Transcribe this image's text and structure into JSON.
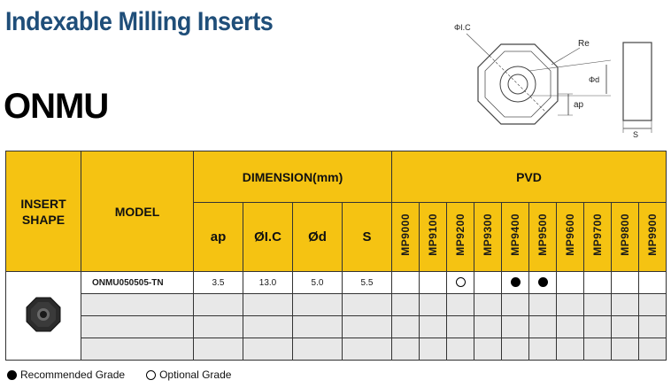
{
  "header": {
    "title": "Indexable Milling Inserts",
    "code": "ONMU"
  },
  "diagram": {
    "label_ic": "ΦI.C",
    "label_re": "Re",
    "label_d": "Φd",
    "label_ap": "ap",
    "label_s": "S"
  },
  "table": {
    "col_shape": "INSERT SHAPE",
    "col_model": "MODEL",
    "group_dimension": "DIMENSION(mm)",
    "group_pvd": "PVD",
    "dimension_cols": [
      "ap",
      "ØI.C",
      "Ød",
      "S"
    ],
    "grades": [
      "MP9000",
      "MP9100",
      "MP9200",
      "MP9300",
      "MP9400",
      "MP9500",
      "MP9600",
      "MP9700",
      "MP9800",
      "MP9900"
    ],
    "rows": [
      {
        "model": "ONMU050505-TN",
        "ap": "3.5",
        "ic": "13.0",
        "d": "5.0",
        "s": "5.5",
        "marks": [
          "",
          "",
          "optional",
          "",
          "recommended",
          "recommended",
          "",
          "",
          "",
          ""
        ]
      },
      {
        "model": "",
        "ap": "",
        "ic": "",
        "d": "",
        "s": "",
        "marks": [
          "",
          "",
          "",
          "",
          "",
          "",
          "",
          "",
          "",
          ""
        ]
      },
      {
        "model": "",
        "ap": "",
        "ic": "",
        "d": "",
        "s": "",
        "marks": [
          "",
          "",
          "",
          "",
          "",
          "",
          "",
          "",
          "",
          ""
        ]
      },
      {
        "model": "",
        "ap": "",
        "ic": "",
        "d": "",
        "s": "",
        "marks": [
          "",
          "",
          "",
          "",
          "",
          "",
          "",
          "",
          "",
          ""
        ]
      }
    ]
  },
  "legend": {
    "recommended": "Recommended Grade",
    "optional": "Optional Grade"
  },
  "colors": {
    "header_bg": "#f5c312",
    "title": "#1f4e79",
    "alt_row": "#e8e8e8"
  }
}
